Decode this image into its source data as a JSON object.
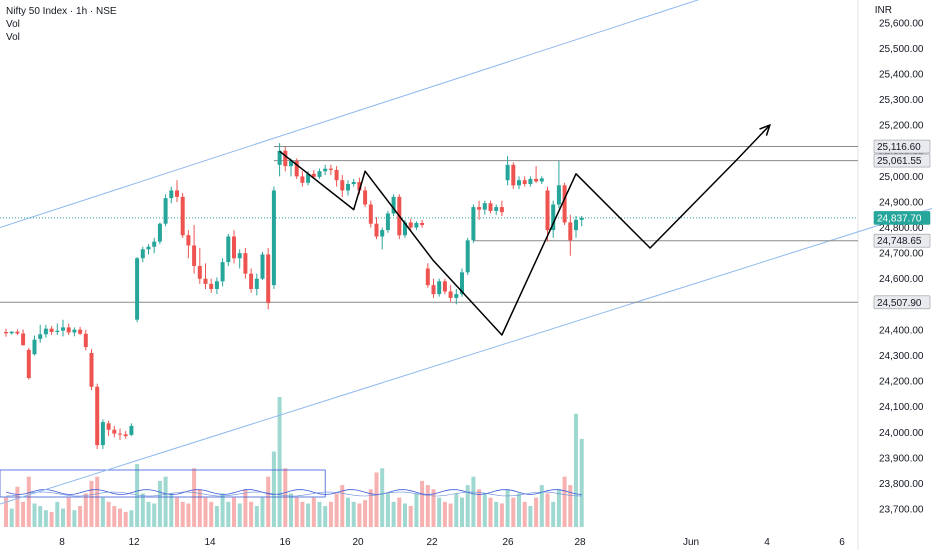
{
  "legend": {
    "symbol": "Nifty 50 Index · 1h · NSE",
    "vol1": "Vol",
    "vol2": "Vol"
  },
  "currency": "INR",
  "colors": {
    "up": "#26a69a",
    "down": "#ef5350",
    "up_vol": "#9ed8d1",
    "down_vol": "#f6b1b0",
    "channel": "#90b9ee",
    "pattern": "#000000",
    "level": "#8a8a8a",
    "grid_text": "#131722"
  },
  "chart_data": {
    "type": "candlestick",
    "title": "",
    "xlabel": "",
    "ylabel": "",
    "ylim": [
      23630,
      25650
    ],
    "y_ticks": [
      "25,600.00",
      "25,500.00",
      "25,400.00",
      "25,300.00",
      "25,200.00",
      "25,100.00",
      "25,000.00",
      "24,900.00",
      "24,800.00",
      "24,700.00",
      "24,600.00",
      "24,500.00",
      "24,400.00",
      "24,300.00",
      "24,200.00",
      "24,100.00",
      "24,000.00",
      "23,900.00",
      "23,800.00",
      "23,700.00"
    ],
    "x_ticks": [
      "8",
      "12",
      "14",
      "16",
      "20",
      "22",
      "26",
      "28",
      "Jun",
      "4",
      "6"
    ],
    "levels": [
      {
        "value": 25116.6,
        "label": "25,116.60",
        "style": "gray"
      },
      {
        "value": 25061.55,
        "label": "25,061.55",
        "style": "gray"
      },
      {
        "value": 24837.7,
        "label": "24,837.70",
        "style": "last"
      },
      {
        "value": 24748.65,
        "label": "24,748.65",
        "style": "gray"
      },
      {
        "value": 24507.9,
        "label": "24,507.90",
        "style": "gray"
      }
    ],
    "candles": [
      {
        "x": 0,
        "o": 24392,
        "h": 24405,
        "l": 24374,
        "c": 24387
      },
      {
        "x": 1,
        "o": 24387,
        "h": 24395,
        "l": 24382,
        "c": 24393
      },
      {
        "x": 2,
        "o": 24393,
        "h": 24402,
        "l": 24380,
        "c": 24386
      },
      {
        "x": 3,
        "o": 24386,
        "h": 24402,
        "l": 24339,
        "c": 24340
      },
      {
        "x": 4,
        "o": 24322,
        "h": 24330,
        "l": 24206,
        "c": 24212
      },
      {
        "x": 5,
        "o": 24305,
        "h": 24378,
        "l": 24300,
        "c": 24362
      },
      {
        "x": 6,
        "o": 24365,
        "h": 24420,
        "l": 24350,
        "c": 24383
      },
      {
        "x": 7,
        "o": 24383,
        "h": 24420,
        "l": 24370,
        "c": 24405
      },
      {
        "x": 8,
        "o": 24405,
        "h": 24415,
        "l": 24380,
        "c": 24392
      },
      {
        "x": 9,
        "o": 24392,
        "h": 24425,
        "l": 24380,
        "c": 24397
      },
      {
        "x": 10,
        "o": 24397,
        "h": 24440,
        "l": 24375,
        "c": 24410
      },
      {
        "x": 11,
        "o": 24410,
        "h": 24425,
        "l": 24380,
        "c": 24390
      },
      {
        "x": 12,
        "o": 24390,
        "h": 24410,
        "l": 24375,
        "c": 24401
      },
      {
        "x": 13,
        "o": 24401,
        "h": 24412,
        "l": 24380,
        "c": 24385
      },
      {
        "x": 14,
        "o": 24385,
        "h": 24400,
        "l": 24320,
        "c": 24333
      },
      {
        "x": 15,
        "o": 24310,
        "h": 24325,
        "l": 24165,
        "c": 24178
      },
      {
        "x": 16,
        "o": 24178,
        "h": 24190,
        "l": 23935,
        "c": 23950
      },
      {
        "x": 17,
        "o": 23950,
        "h": 24050,
        "l": 23935,
        "c": 24040
      },
      {
        "x": 18,
        "o": 24035,
        "h": 24045,
        "l": 23985,
        "c": 24010
      },
      {
        "x": 19,
        "o": 24010,
        "h": 24025,
        "l": 23980,
        "c": 23995
      },
      {
        "x": 20,
        "o": 23995,
        "h": 24015,
        "l": 23970,
        "c": 23992
      },
      {
        "x": 21,
        "o": 23992,
        "h": 24005,
        "l": 23975,
        "c": 23985
      },
      {
        "x": 22,
        "o": 23990,
        "h": 24035,
        "l": 23985,
        "c": 24025
      },
      {
        "x": 23,
        "o": 24440,
        "h": 24685,
        "l": 24430,
        "c": 24680
      },
      {
        "x": 24,
        "o": 24680,
        "h": 24725,
        "l": 24665,
        "c": 24715
      },
      {
        "x": 25,
        "o": 24715,
        "h": 24735,
        "l": 24695,
        "c": 24725
      },
      {
        "x": 26,
        "o": 24725,
        "h": 24760,
        "l": 24700,
        "c": 24745
      },
      {
        "x": 27,
        "o": 24745,
        "h": 24820,
        "l": 24735,
        "c": 24815
      },
      {
        "x": 28,
        "o": 24815,
        "h": 24930,
        "l": 24805,
        "c": 24915
      },
      {
        "x": 29,
        "o": 24915,
        "h": 24960,
        "l": 24895,
        "c": 24945
      },
      {
        "x": 30,
        "o": 24945,
        "h": 24985,
        "l": 24900,
        "c": 24920
      },
      {
        "x": 31,
        "o": 24920,
        "h": 24935,
        "l": 24760,
        "c": 24770
      },
      {
        "x": 32,
        "o": 24770,
        "h": 24790,
        "l": 24680,
        "c": 24730
      },
      {
        "x": 33,
        "o": 24730,
        "h": 24810,
        "l": 24620,
        "c": 24650
      },
      {
        "x": 34,
        "o": 24650,
        "h": 24720,
        "l": 24580,
        "c": 24600
      },
      {
        "x": 35,
        "o": 24600,
        "h": 24660,
        "l": 24560,
        "c": 24580
      },
      {
        "x": 36,
        "o": 24580,
        "h": 24600,
        "l": 24545,
        "c": 24560
      },
      {
        "x": 37,
        "o": 24560,
        "h": 24605,
        "l": 24540,
        "c": 24590
      },
      {
        "x": 38,
        "o": 24590,
        "h": 24680,
        "l": 24570,
        "c": 24665
      },
      {
        "x": 39,
        "o": 24665,
        "h": 24775,
        "l": 24650,
        "c": 24765
      },
      {
        "x": 40,
        "o": 24765,
        "h": 24790,
        "l": 24660,
        "c": 24680
      },
      {
        "x": 41,
        "o": 24680,
        "h": 24715,
        "l": 24640,
        "c": 24700
      },
      {
        "x": 42,
        "o": 24700,
        "h": 24720,
        "l": 24600,
        "c": 24620
      },
      {
        "x": 43,
        "o": 24620,
        "h": 24640,
        "l": 24545,
        "c": 24560
      },
      {
        "x": 44,
        "o": 24560,
        "h": 24620,
        "l": 24535,
        "c": 24600
      },
      {
        "x": 45,
        "o": 24600,
        "h": 24705,
        "l": 24595,
        "c": 24695
      },
      {
        "x": 46,
        "o": 24695,
        "h": 24720,
        "l": 24480,
        "c": 24505
      },
      {
        "x": 47,
        "o": 24575,
        "h": 24960,
        "l": 24560,
        "c": 24945
      },
      {
        "x": 48,
        "o": 25045,
        "h": 25130,
        "l": 25000,
        "c": 25100
      },
      {
        "x": 49,
        "o": 25100,
        "h": 25115,
        "l": 25020,
        "c": 25040
      },
      {
        "x": 50,
        "o": 25040,
        "h": 25070,
        "l": 25000,
        "c": 25060
      },
      {
        "x": 51,
        "o": 25060,
        "h": 25070,
        "l": 24990,
        "c": 25000
      },
      {
        "x": 52,
        "o": 25000,
        "h": 25020,
        "l": 24960,
        "c": 24975
      },
      {
        "x": 53,
        "o": 24975,
        "h": 25020,
        "l": 24965,
        "c": 25010
      },
      {
        "x": 54,
        "o": 25010,
        "h": 25025,
        "l": 24990,
        "c": 24998
      },
      {
        "x": 55,
        "o": 24998,
        "h": 25030,
        "l": 24990,
        "c": 25020
      },
      {
        "x": 56,
        "o": 25020,
        "h": 25045,
        "l": 25005,
        "c": 25030
      },
      {
        "x": 57,
        "o": 25030,
        "h": 25045,
        "l": 25005,
        "c": 25025
      },
      {
        "x": 58,
        "o": 25025,
        "h": 25040,
        "l": 24960,
        "c": 24985
      },
      {
        "x": 59,
        "o": 24985,
        "h": 25005,
        "l": 24920,
        "c": 24945
      },
      {
        "x": 60,
        "o": 24945,
        "h": 24985,
        "l": 24925,
        "c": 24970
      },
      {
        "x": 61,
        "o": 24970,
        "h": 24990,
        "l": 24960,
        "c": 24978
      },
      {
        "x": 62,
        "o": 24978,
        "h": 24995,
        "l": 24930,
        "c": 24945
      },
      {
        "x": 63,
        "o": 24945,
        "h": 24960,
        "l": 24880,
        "c": 24890
      },
      {
        "x": 64,
        "o": 24890,
        "h": 24905,
        "l": 24800,
        "c": 24815
      },
      {
        "x": 65,
        "o": 24815,
        "h": 24840,
        "l": 24755,
        "c": 24765
      },
      {
        "x": 66,
        "o": 24765,
        "h": 24800,
        "l": 24715,
        "c": 24790
      },
      {
        "x": 67,
        "o": 24790,
        "h": 24865,
        "l": 24780,
        "c": 24855
      },
      {
        "x": 68,
        "o": 24855,
        "h": 24930,
        "l": 24845,
        "c": 24920
      },
      {
        "x": 69,
        "o": 24920,
        "h": 24930,
        "l": 24755,
        "c": 24770
      },
      {
        "x": 70,
        "o": 24770,
        "h": 24830,
        "l": 24760,
        "c": 24820
      },
      {
        "x": 71,
        "o": 24820,
        "h": 24835,
        "l": 24790,
        "c": 24800
      },
      {
        "x": 72,
        "o": 24800,
        "h": 24825,
        "l": 24790,
        "c": 24818
      },
      {
        "x": 73,
        "o": 24818,
        "h": 24830,
        "l": 24800,
        "c": 24810
      },
      {
        "x": 74,
        "o": 24640,
        "h": 24660,
        "l": 24565,
        "c": 24575
      },
      {
        "x": 75,
        "o": 24575,
        "h": 24600,
        "l": 24525,
        "c": 24540
      },
      {
        "x": 76,
        "o": 24540,
        "h": 24600,
        "l": 24530,
        "c": 24590
      },
      {
        "x": 77,
        "o": 24590,
        "h": 24600,
        "l": 24540,
        "c": 24550
      },
      {
        "x": 78,
        "o": 24550,
        "h": 24575,
        "l": 24510,
        "c": 24525
      },
      {
        "x": 79,
        "o": 24525,
        "h": 24560,
        "l": 24500,
        "c": 24540
      },
      {
        "x": 80,
        "o": 24540,
        "h": 24640,
        "l": 24530,
        "c": 24625
      },
      {
        "x": 81,
        "o": 24625,
        "h": 24760,
        "l": 24615,
        "c": 24750
      },
      {
        "x": 82,
        "o": 24750,
        "h": 24890,
        "l": 24740,
        "c": 24880
      },
      {
        "x": 83,
        "o": 24880,
        "h": 24905,
        "l": 24830,
        "c": 24870
      },
      {
        "x": 84,
        "o": 24870,
        "h": 24905,
        "l": 24850,
        "c": 24895
      },
      {
        "x": 85,
        "o": 24895,
        "h": 24905,
        "l": 24855,
        "c": 24865
      },
      {
        "x": 86,
        "o": 24865,
        "h": 24890,
        "l": 24850,
        "c": 24880
      },
      {
        "x": 87,
        "o": 24880,
        "h": 24905,
        "l": 24845,
        "c": 24860
      },
      {
        "x": 88,
        "o": 24985,
        "h": 25080,
        "l": 24965,
        "c": 25045
      },
      {
        "x": 89,
        "o": 25045,
        "h": 25055,
        "l": 24950,
        "c": 24965
      },
      {
        "x": 90,
        "o": 24965,
        "h": 25000,
        "l": 24950,
        "c": 24985
      },
      {
        "x": 91,
        "o": 24985,
        "h": 25000,
        "l": 24960,
        "c": 24970
      },
      {
        "x": 92,
        "o": 24970,
        "h": 25000,
        "l": 24960,
        "c": 24990
      },
      {
        "x": 93,
        "o": 24990,
        "h": 25040,
        "l": 24975,
        "c": 24980
      },
      {
        "x": 94,
        "o": 24980,
        "h": 25000,
        "l": 24970,
        "c": 24992
      },
      {
        "x": 95,
        "o": 24945,
        "h": 24960,
        "l": 24745,
        "c": 24790
      },
      {
        "x": 96,
        "o": 24790,
        "h": 24905,
        "l": 24760,
        "c": 24890
      },
      {
        "x": 97,
        "o": 24890,
        "h": 25060,
        "l": 24875,
        "c": 24965
      },
      {
        "x": 98,
        "o": 24965,
        "h": 24975,
        "l": 24810,
        "c": 24820
      },
      {
        "x": 99,
        "o": 24820,
        "h": 24850,
        "l": 24690,
        "c": 24750
      },
      {
        "x": 100,
        "o": 24790,
        "h": 24845,
        "l": 24760,
        "c": 24830
      },
      {
        "x": 101,
        "o": 24830,
        "h": 24845,
        "l": 24805,
        "c": 24838
      }
    ],
    "volumes": [
      35,
      22,
      48,
      30,
      60,
      28,
      25,
      20,
      18,
      30,
      22,
      35,
      20,
      25,
      40,
      55,
      60,
      35,
      30,
      25,
      22,
      18,
      20,
      75,
      40,
      30,
      28,
      55,
      60,
      40,
      35,
      30,
      28,
      70,
      45,
      35,
      30,
      25,
      40,
      30,
      35,
      28,
      45,
      30,
      25,
      35,
      60,
      90,
      155,
      70,
      40,
      35,
      30,
      28,
      35,
      30,
      25,
      30,
      40,
      50,
      35,
      30,
      28,
      32,
      45,
      65,
      70,
      40,
      30,
      35,
      28,
      25,
      40,
      55,
      50,
      45,
      35,
      30,
      28,
      40,
      35,
      50,
      60,
      45,
      40,
      35,
      30,
      28,
      45,
      35,
      40,
      30,
      25,
      35,
      50,
      40,
      30,
      45,
      60,
      50,
      135,
      105
    ],
    "pattern": [
      [
        48,
        25098
      ],
      [
        61,
        24870
      ],
      [
        63,
        25020
      ],
      [
        75,
        24670
      ],
      [
        87,
        24380
      ],
      [
        100,
        25010
      ],
      [
        113,
        24720
      ],
      [
        128,
        25060
      ],
      [
        134,
        25200
      ]
    ],
    "pattern_arrow": [
      [
        128,
        25060
      ],
      [
        134,
        25200
      ]
    ],
    "channel_upper": [
      [
        0,
        24800
      ],
      [
        138,
        25810
      ]
    ],
    "channel_lower": [
      [
        0,
        23720
      ],
      [
        166,
        24900
      ]
    ],
    "volume_ma_box": {
      "x0": 0,
      "x1": 56
    }
  }
}
